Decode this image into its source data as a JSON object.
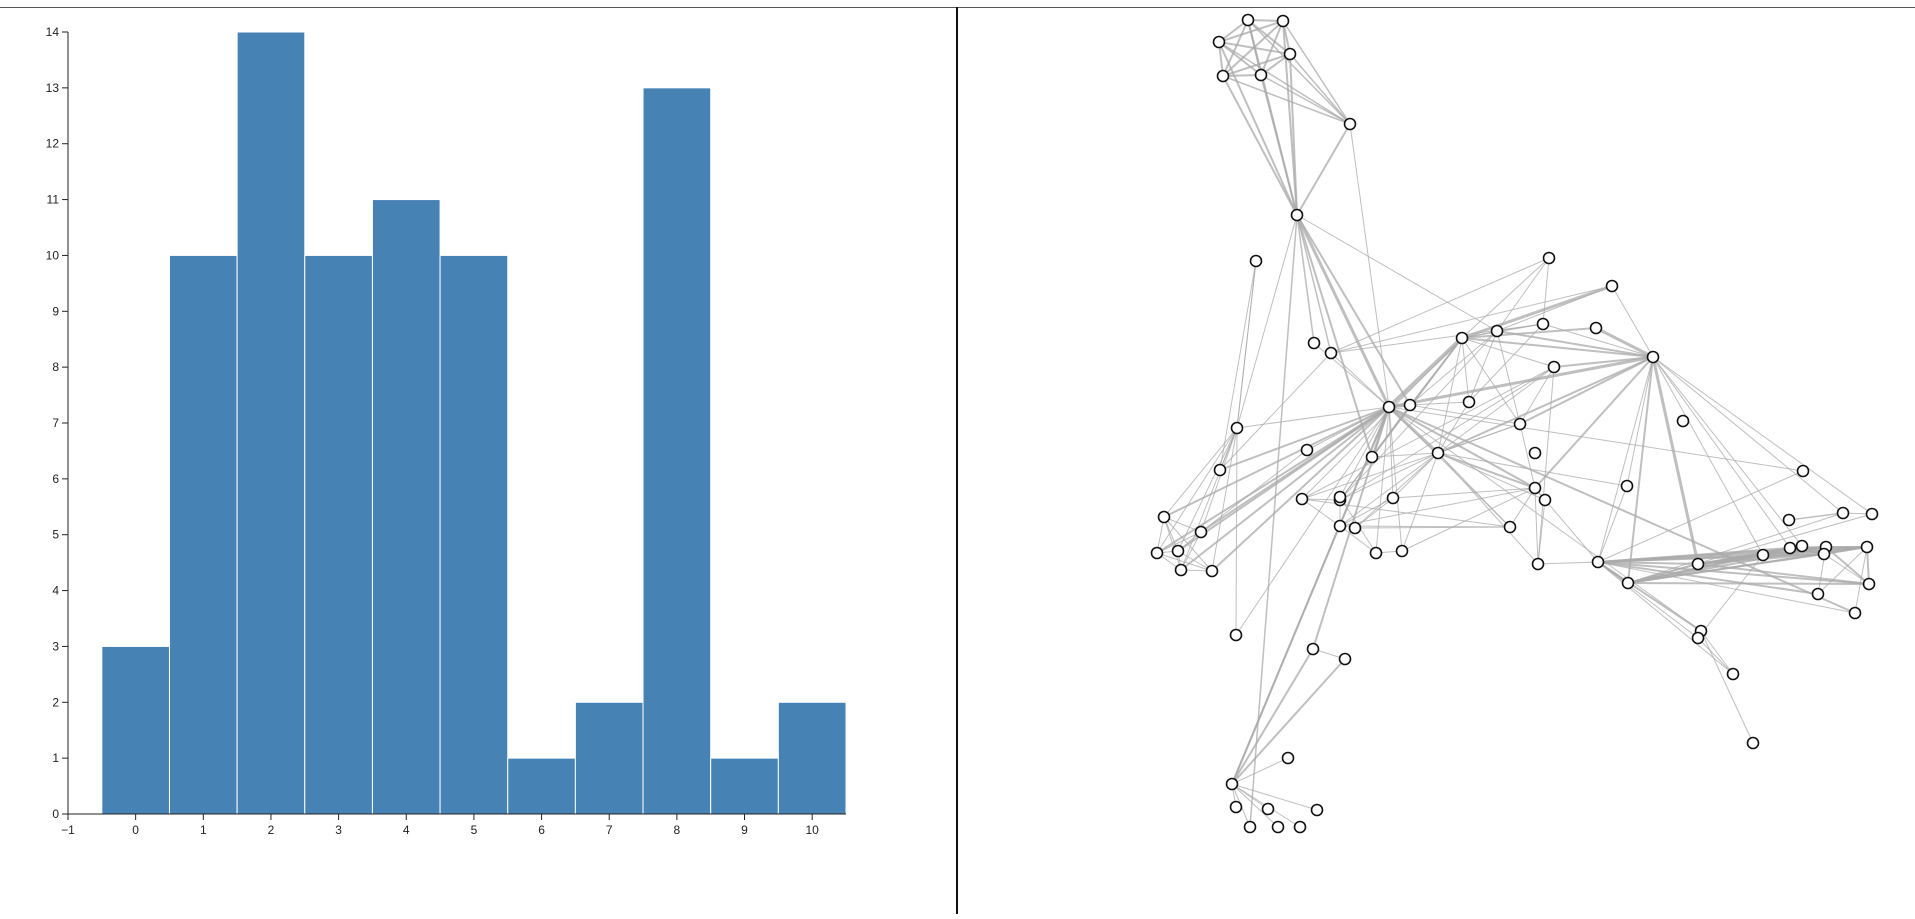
{
  "colors": {
    "bar": "#4682b4",
    "bar_stroke": "#ffffff",
    "edge": "#aaaaaa",
    "node_fill": "#ffffff",
    "node_stroke": "#111111",
    "axis": "#222222"
  },
  "chart_data": [
    {
      "type": "bar",
      "title": "",
      "xlabel": "",
      "ylabel": "",
      "categories": [
        0,
        1,
        2,
        3,
        4,
        5,
        6,
        7,
        8,
        9,
        10
      ],
      "values": [
        3,
        10,
        14,
        10,
        11,
        10,
        1,
        2,
        13,
        1,
        2
      ],
      "xlim": [
        -1,
        10.5
      ],
      "ylim": [
        0,
        14
      ],
      "x_ticks": [
        -1,
        0,
        1,
        2,
        3,
        4,
        5,
        6,
        7,
        8,
        9,
        10
      ],
      "y_ticks": [
        0,
        1,
        2,
        3,
        4,
        5,
        6,
        7,
        8,
        9,
        10,
        11,
        12,
        13,
        14
      ],
      "grid": false,
      "legend": "none"
    },
    {
      "type": "network",
      "title": "",
      "node_count": 77,
      "node_style": "hollow circle",
      "edge_style": "gray lines, width proportional to weight",
      "legend": "none"
    }
  ]
}
